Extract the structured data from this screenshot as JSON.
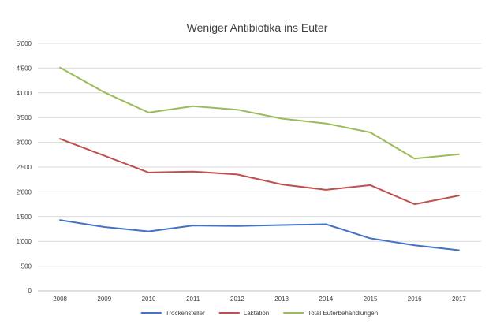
{
  "chart_data": {
    "type": "line",
    "title": "Weniger Antibiotika ins Euter",
    "xlabel": "",
    "ylabel": "",
    "categories": [
      "2008",
      "2009",
      "2010",
      "2011",
      "2012",
      "2013",
      "2014",
      "2015",
      "2016",
      "2017"
    ],
    "ylim": [
      0,
      5000
    ],
    "yticks": [
      0,
      500,
      1000,
      1500,
      2000,
      2500,
      3000,
      3500,
      4000,
      4500,
      5000
    ],
    "ytick_labels": [
      "0",
      "500",
      "1'000",
      "1'500",
      "2'000",
      "2'500",
      "3'000",
      "3'500",
      "4'000",
      "4'500",
      "5'000"
    ],
    "grid": true,
    "legend_position": "bottom",
    "series": [
      {
        "name": "Trockensteller",
        "color": "#4472c4",
        "values": [
          1430,
          1290,
          1200,
          1320,
          1310,
          1330,
          1345,
          1060,
          920,
          820
        ]
      },
      {
        "name": "Laktation",
        "color": "#c0504d",
        "values": [
          3070,
          2730,
          2390,
          2410,
          2350,
          2150,
          2040,
          2135,
          1750,
          1925
        ]
      },
      {
        "name": "Total Euterbehandlungen",
        "color": "#9bbb59",
        "values": [
          4510,
          4010,
          3600,
          3730,
          3660,
          3480,
          3380,
          3200,
          2670,
          2760
        ]
      }
    ]
  }
}
